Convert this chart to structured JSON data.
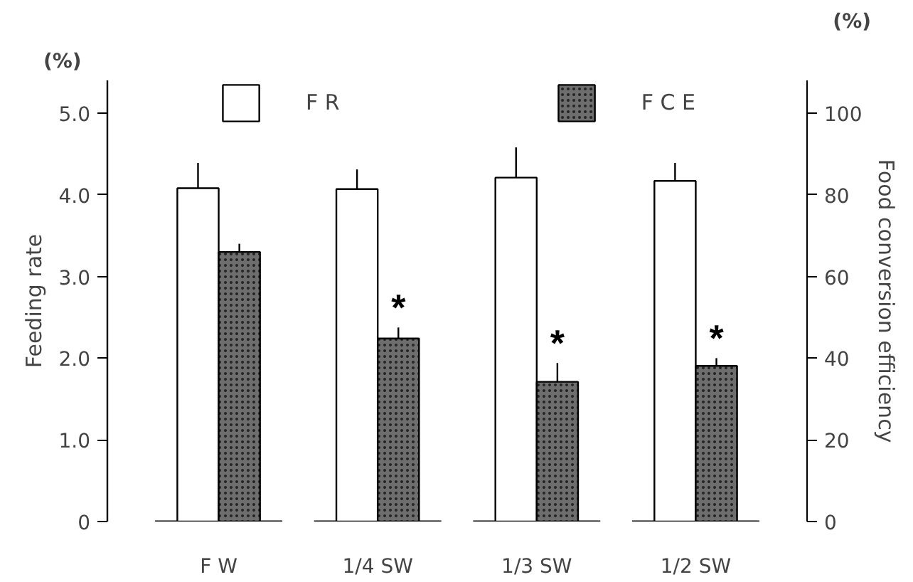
{
  "chart_data": {
    "type": "bar",
    "categories": [
      "F W",
      "1/4 SW",
      "1/3 SW",
      "1/2 SW"
    ],
    "ylabel": "Feeding rate",
    "y2label": "Food conversion efficiency",
    "ylim": [
      0,
      5.4
    ],
    "yticks": [
      0,
      {
        "value": 1,
        "label": "1.0"
      },
      {
        "value": 2,
        "label": "2.0"
      },
      {
        "value": 3,
        "label": "3.0"
      },
      {
        "value": 4,
        "label": "4.0"
      },
      {
        "value": 5,
        "label": "5.0"
      }
    ],
    "y2lim": [
      0,
      108
    ],
    "y2ticks": [
      0,
      20,
      40,
      60,
      80,
      100
    ],
    "series": [
      {
        "name": "F R",
        "color": "#ffffff",
        "values": [
          4.08,
          4.07,
          4.21,
          4.17
        ],
        "errors": [
          [
            4.08,
            4.39
          ],
          [
            4.07,
            4.31
          ],
          [
            4.21,
            4.58
          ],
          [
            4.17,
            4.39
          ]
        ]
      },
      {
        "name": "F C E",
        "color": "#6e6e6e",
        "axis": "y2",
        "values": [
          66,
          44.8,
          34.2,
          38.1
        ],
        "errors": [
          [
            66,
            68
          ],
          [
            44.8,
            47.5
          ],
          [
            34.2,
            38.8
          ],
          [
            38.1,
            40
          ]
        ]
      }
    ],
    "annotations": [
      "(%)",
      "(%)",
      "*",
      "*",
      "*"
    ],
    "legend": "top",
    "grid": false
  }
}
